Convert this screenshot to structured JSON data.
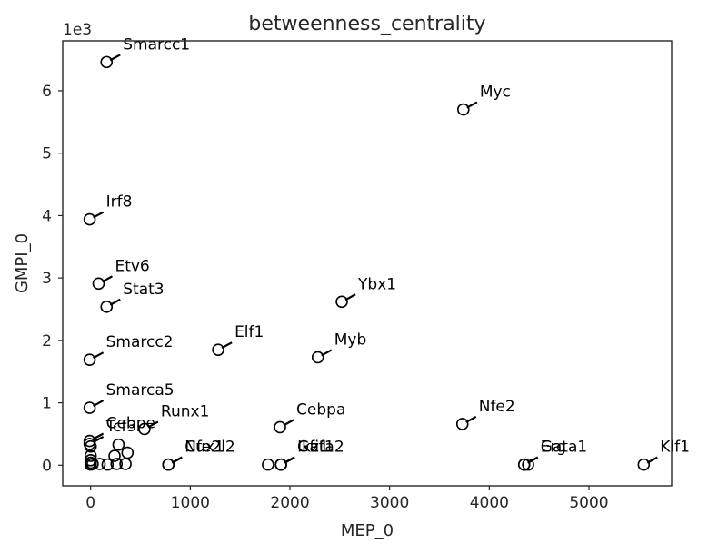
{
  "chart_data": {
    "type": "scatter",
    "title": "betweenness_centrality",
    "xlabel": "MEP_0",
    "ylabel": "GMPI_0",
    "y_offset_text": "1e3",
    "xlim": [
      -280,
      5830
    ],
    "ylim": [
      -330,
      6800
    ],
    "x_ticks": [
      0,
      1000,
      2000,
      3000,
      4000,
      5000
    ],
    "x_tick_labels": [
      "0",
      "1000",
      "2000",
      "3000",
      "4000",
      "5000"
    ],
    "y_ticks": [
      0,
      1000,
      2000,
      3000,
      4000,
      5000,
      6000
    ],
    "y_tick_labels": [
      "0",
      "1",
      "2",
      "3",
      "4",
      "5",
      "6"
    ],
    "grid": false,
    "labeled_points": [
      {
        "label": "Smarcc1",
        "x": 160,
        "y": 6460
      },
      {
        "label": "Myc",
        "x": 3740,
        "y": 5700
      },
      {
        "label": "Irf8",
        "x": -10,
        "y": 3940
      },
      {
        "label": "Etv6",
        "x": 80,
        "y": 2910
      },
      {
        "label": "Stat3",
        "x": 160,
        "y": 2540
      },
      {
        "label": "Ybx1",
        "x": 2520,
        "y": 2620
      },
      {
        "label": "Elf1",
        "x": 1280,
        "y": 1850
      },
      {
        "label": "Myb",
        "x": 2280,
        "y": 1730
      },
      {
        "label": "Smarcc2",
        "x": -10,
        "y": 1690
      },
      {
        "label": "Smarca5",
        "x": -10,
        "y": 920
      },
      {
        "label": "Runx1",
        "x": 540,
        "y": 580
      },
      {
        "label": "Cebpa",
        "x": 1900,
        "y": 610
      },
      {
        "label": "Nfe2",
        "x": 3730,
        "y": 660
      },
      {
        "label": "Cebpe",
        "x": -10,
        "y": 390
      },
      {
        "label": "Tcf3",
        "x": -10,
        "y": 340
      },
      {
        "label": "Nfe2l2",
        "x": 780,
        "y": 10
      },
      {
        "label": "Cux1",
        "x": 780,
        "y": 10
      },
      {
        "label": "Gfi1",
        "x": 1910,
        "y": 10
      },
      {
        "label": "Gata2",
        "x": 1910,
        "y": 10
      },
      {
        "label": "Ikzf1",
        "x": 1910,
        "y": 10
      },
      {
        "label": "Gata1",
        "x": 4350,
        "y": 10
      },
      {
        "label": "Erg",
        "x": 4350,
        "y": 10
      },
      {
        "label": "Klf1",
        "x": 5550,
        "y": 10
      }
    ],
    "unlabeled_points": [
      {
        "x": 0,
        "y": 10
      },
      {
        "x": 0,
        "y": 40
      },
      {
        "x": 0,
        "y": 80
      },
      {
        "x": 0,
        "y": 150
      },
      {
        "x": 0,
        "y": 300
      },
      {
        "x": 20,
        "y": 20
      },
      {
        "x": 90,
        "y": 20
      },
      {
        "x": 170,
        "y": 10
      },
      {
        "x": 240,
        "y": 150
      },
      {
        "x": 260,
        "y": 20
      },
      {
        "x": 280,
        "y": 330
      },
      {
        "x": 350,
        "y": 20
      },
      {
        "x": 370,
        "y": 200
      },
      {
        "x": 1780,
        "y": 10
      },
      {
        "x": 4390,
        "y": 10
      }
    ]
  }
}
